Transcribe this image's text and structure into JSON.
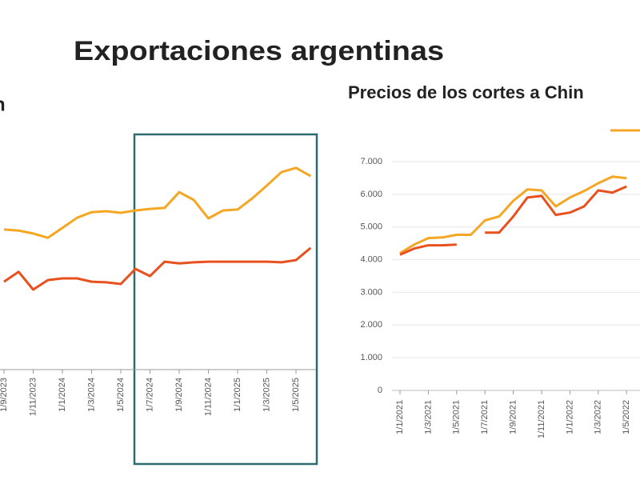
{
  "title": "Exportaciones argentinas",
  "chart_data": [
    {
      "type": "line",
      "title": "n",
      "categories": [
        "1/9/2023",
        null,
        "1/11/2023",
        null,
        "1/1/2024",
        null,
        "1/3/2024",
        null,
        "1/5/2024",
        null,
        "1/7/2024",
        null,
        "1/9/2024",
        null,
        "1/11/2024",
        null,
        "1/1/2025",
        null,
        "1/3/2025",
        null,
        "1/5/2025",
        null
      ],
      "series": [
        {
          "color": "#f5a623",
          "values": [
            4270,
            4240,
            4150,
            4020,
            4320,
            4630,
            4800,
            4830,
            4780,
            4850,
            4900,
            4930,
            5410,
            5170,
            4610,
            4850,
            4880,
            5220,
            5610,
            6020,
            6150,
            5900
          ]
        },
        {
          "color": "#e8501e",
          "values": [
            2680,
            2980,
            2440,
            2730,
            2780,
            2780,
            2680,
            2660,
            2610,
            3070,
            2850,
            3290,
            3240,
            3270,
            3290,
            3290,
            3290,
            3290,
            3290,
            3270,
            3340,
            3710
          ]
        }
      ],
      "ylim": [
        0,
        7000
      ]
    },
    {
      "type": "line",
      "title": "Precios de los cortes a Chin",
      "categories": [
        "1/1/2021",
        null,
        "1/3/2021",
        null,
        "1/5/2021",
        null,
        "1/7/2021",
        null,
        "1/9/2021",
        null,
        "1/11/2021",
        null,
        "1/1/2022",
        null,
        "1/3/2022",
        null,
        "1/5/2022"
      ],
      "series": [
        {
          "color": "#f5a623",
          "values": [
            4200,
            4460,
            4660,
            4680,
            4760,
            4760,
            5200,
            5320,
            5800,
            6150,
            6120,
            5630,
            5900,
            6100,
            6340,
            6540,
            6490
          ]
        },
        {
          "color": "#e8501e",
          "values": [
            4150,
            4340,
            4440,
            4440,
            4460,
            null,
            4830,
            4830,
            5320,
            5900,
            5950,
            5370,
            5440,
            5630,
            6120,
            6050,
            6240
          ]
        }
      ],
      "ylim": [
        0,
        7000
      ],
      "yticks": [
        {
          "value": 0,
          "label": "0"
        },
        {
          "value": 1000,
          "label": "1.000"
        },
        {
          "value": 2000,
          "label": "2.000"
        },
        {
          "value": 3000,
          "label": "3.000"
        },
        {
          "value": 4000,
          "label": "4.000"
        },
        {
          "value": 5000,
          "label": "5.000"
        },
        {
          "value": 6000,
          "label": "6.000"
        },
        {
          "value": 7000,
          "label": "7.000"
        }
      ],
      "grid": true
    }
  ]
}
